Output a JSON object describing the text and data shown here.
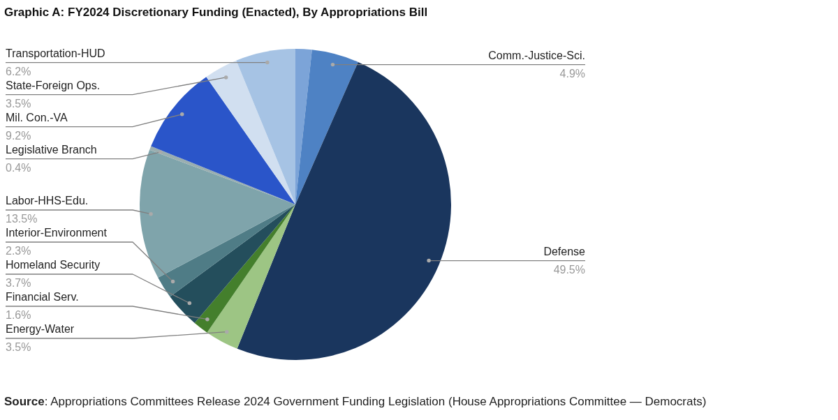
{
  "chart_data": {
    "type": "pie",
    "title": "Graphic A: FY2024 Discretionary Funding (Enacted), By Appropriations Bill",
    "categories": [
      null,
      "Comm.-Justice-Sci.",
      "Defense",
      "Energy-Water",
      "Financial Serv.",
      "Homeland Security",
      "Interior-Environment",
      "Labor-HHS-Edu.",
      "Legislative Branch",
      "Mil. Con.-VA",
      "State-Foreign Ops.",
      "Transportation-HUD"
    ],
    "values": [
      1.7,
      4.9,
      49.5,
      3.5,
      1.6,
      3.7,
      2.3,
      13.5,
      0.4,
      9.2,
      3.5,
      6.2
    ],
    "value_labels": [
      null,
      "4.9%",
      "49.5%",
      "3.5%",
      "1.6%",
      "3.7%",
      "2.3%",
      "13.5%",
      "0.4%",
      "9.2%",
      "3.5%",
      "6.2%"
    ],
    "colors": [
      "#7ca4d8",
      "#4e82c4",
      "#1a365e",
      "#9dc584",
      "#447f2c",
      "#244e5c",
      "#4f7c86",
      "#7fa4ab",
      "#9aaeb0",
      "#2a55c9",
      "#d1dff0",
      "#a6c3e4"
    ],
    "annotations": [
      "Source: Appropriations Committees Release 2024 Government Funding Legislation (House Appropriations Committee — Democrats)"
    ]
  }
}
